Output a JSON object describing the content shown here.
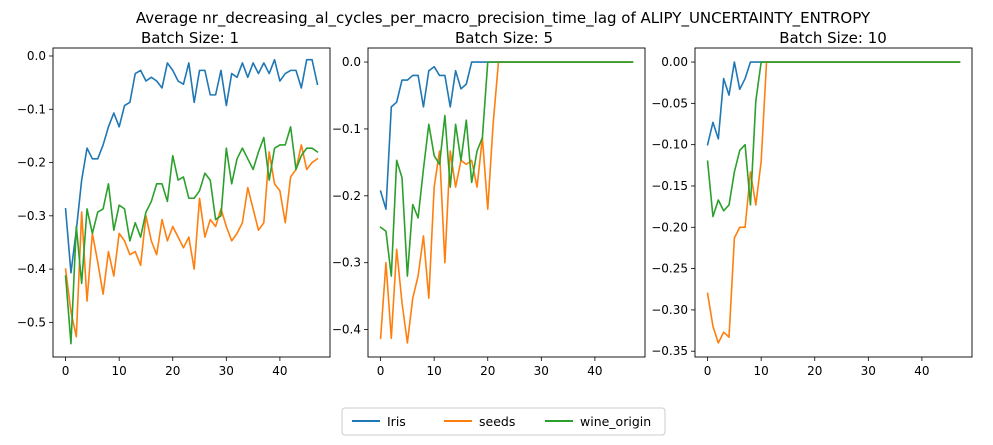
{
  "figure": {
    "suptitle": "Average nr_decreasing_al_cycles_per_macro_precision_time_lag of ALIPY_UNCERTAINTY_ENTROPY",
    "legend": [
      {
        "label": "Iris",
        "color": "#1f77b4"
      },
      {
        "label": "seeds",
        "color": "#ff7f0e"
      },
      {
        "label": "wine_origin",
        "color": "#2ca02c"
      }
    ],
    "legend_position": "bottom-center"
  },
  "chart_data": [
    {
      "type": "line",
      "title": "Batch Size: 1",
      "xlabel": "",
      "ylabel": "",
      "xlim": [
        -2.35,
        49.35
      ],
      "ylim": [
        -0.565,
        0.015
      ],
      "xticks": [
        0,
        10,
        20,
        30,
        40
      ],
      "xtick_labels": [
        "0",
        "10",
        "20",
        "30",
        "40"
      ],
      "yticks": [
        0.0,
        -0.1,
        -0.2,
        -0.3,
        -0.4,
        -0.5
      ],
      "ytick_labels": [
        "0.0",
        "−0.1",
        "−0.2",
        "−0.3",
        "−0.4",
        "−0.5"
      ],
      "grid": false,
      "x": [
        0,
        1,
        2,
        3,
        4,
        5,
        6,
        7,
        8,
        9,
        10,
        11,
        12,
        13,
        14,
        15,
        16,
        17,
        18,
        19,
        20,
        21,
        22,
        23,
        24,
        25,
        26,
        27,
        28,
        29,
        30,
        31,
        32,
        33,
        34,
        35,
        36,
        37,
        38,
        39,
        40,
        41,
        42,
        43,
        44,
        45,
        46,
        47
      ],
      "series": [
        {
          "name": "Iris",
          "color": "#1f77b4",
          "values": [
            -0.287,
            -0.407,
            -0.327,
            -0.233,
            -0.173,
            -0.193,
            -0.193,
            -0.167,
            -0.133,
            -0.107,
            -0.133,
            -0.093,
            -0.087,
            -0.033,
            -0.027,
            -0.047,
            -0.04,
            -0.047,
            -0.06,
            -0.013,
            -0.027,
            -0.047,
            -0.053,
            -0.013,
            -0.087,
            -0.027,
            -0.027,
            -0.073,
            -0.073,
            -0.027,
            -0.093,
            -0.033,
            -0.04,
            -0.013,
            -0.04,
            -0.013,
            -0.033,
            -0.013,
            -0.033,
            -0.007,
            -0.047,
            -0.033,
            -0.027,
            -0.027,
            -0.06,
            -0.007,
            -0.007,
            -0.053
          ]
        },
        {
          "name": "seeds",
          "color": "#ff7f0e",
          "values": [
            -0.4,
            -0.48,
            -0.527,
            -0.293,
            -0.46,
            -0.333,
            -0.387,
            -0.447,
            -0.367,
            -0.413,
            -0.333,
            -0.347,
            -0.373,
            -0.367,
            -0.393,
            -0.3,
            -0.347,
            -0.373,
            -0.307,
            -0.347,
            -0.32,
            -0.34,
            -0.36,
            -0.34,
            -0.4,
            -0.267,
            -0.34,
            -0.307,
            -0.32,
            -0.287,
            -0.32,
            -0.347,
            -0.333,
            -0.313,
            -0.247,
            -0.287,
            -0.327,
            -0.313,
            -0.18,
            -0.24,
            -0.253,
            -0.313,
            -0.227,
            -0.213,
            -0.167,
            -0.213,
            -0.2,
            -0.193
          ]
        },
        {
          "name": "wine_origin",
          "color": "#2ca02c",
          "values": [
            -0.413,
            -0.54,
            -0.32,
            -0.427,
            -0.287,
            -0.333,
            -0.293,
            -0.287,
            -0.24,
            -0.327,
            -0.28,
            -0.287,
            -0.347,
            -0.313,
            -0.34,
            -0.293,
            -0.273,
            -0.24,
            -0.24,
            -0.273,
            -0.187,
            -0.233,
            -0.227,
            -0.267,
            -0.267,
            -0.253,
            -0.22,
            -0.233,
            -0.307,
            -0.3,
            -0.173,
            -0.24,
            -0.193,
            -0.173,
            -0.193,
            -0.213,
            -0.18,
            -0.153,
            -0.233,
            -0.173,
            -0.167,
            -0.167,
            -0.133,
            -0.213,
            -0.187,
            -0.173,
            -0.173,
            -0.18
          ]
        }
      ]
    },
    {
      "type": "line",
      "title": "Batch Size: 5",
      "xlabel": "",
      "ylabel": "",
      "xlim": [
        -2.35,
        49.35
      ],
      "ylim": [
        -0.441,
        0.021
      ],
      "xticks": [
        0,
        10,
        20,
        30,
        40
      ],
      "xtick_labels": [
        "0",
        "10",
        "20",
        "30",
        "40"
      ],
      "yticks": [
        0.0,
        -0.1,
        -0.2,
        -0.3,
        -0.4
      ],
      "ytick_labels": [
        "0.0",
        "−0.1",
        "−0.2",
        "−0.3",
        "−0.4"
      ],
      "grid": false,
      "x": [
        0,
        1,
        2,
        3,
        4,
        5,
        6,
        7,
        8,
        9,
        10,
        11,
        12,
        13,
        14,
        15,
        16,
        17,
        18,
        19,
        20,
        21,
        22,
        23,
        24,
        25,
        26,
        27,
        28,
        29,
        30,
        31,
        32,
        33,
        34,
        35,
        36,
        37,
        38,
        39,
        40,
        41,
        42,
        43,
        44,
        45,
        46,
        47
      ],
      "series": [
        {
          "name": "Iris",
          "color": "#1f77b4",
          "values": [
            -0.193,
            -0.22,
            -0.067,
            -0.06,
            -0.027,
            -0.027,
            -0.02,
            -0.02,
            -0.067,
            -0.013,
            -0.007,
            -0.02,
            -0.02,
            -0.067,
            -0.013,
            -0.04,
            -0.033,
            0,
            0,
            0,
            0,
            0,
            0,
            0,
            0,
            0,
            0,
            0,
            0,
            0,
            0,
            0,
            0,
            0,
            0,
            0,
            0,
            0,
            0,
            0,
            0,
            0,
            0,
            0,
            0,
            0,
            0,
            0
          ]
        },
        {
          "name": "seeds",
          "color": "#ff7f0e",
          "values": [
            -0.413,
            -0.3,
            -0.413,
            -0.28,
            -0.36,
            -0.42,
            -0.353,
            -0.32,
            -0.26,
            -0.353,
            -0.187,
            -0.133,
            -0.3,
            -0.133,
            -0.187,
            -0.147,
            -0.153,
            -0.147,
            -0.187,
            -0.113,
            -0.22,
            -0.093,
            0,
            0,
            0,
            0,
            0,
            0,
            0,
            0,
            0,
            0,
            0,
            0,
            0,
            0,
            0,
            0,
            0,
            0,
            0,
            0,
            0,
            0,
            0,
            0,
            0,
            0
          ]
        },
        {
          "name": "wine_origin",
          "color": "#2ca02c",
          "values": [
            -0.247,
            -0.253,
            -0.32,
            -0.147,
            -0.173,
            -0.32,
            -0.213,
            -0.233,
            -0.16,
            -0.093,
            -0.14,
            -0.153,
            -0.08,
            -0.187,
            -0.093,
            -0.147,
            -0.087,
            -0.18,
            -0.133,
            -0.113,
            0,
            0,
            0,
            0,
            0,
            0,
            0,
            0,
            0,
            0,
            0,
            0,
            0,
            0,
            0,
            0,
            0,
            0,
            0,
            0,
            0,
            0,
            0,
            0,
            0,
            0,
            0,
            0
          ]
        }
      ]
    },
    {
      "type": "line",
      "title": "Batch Size: 10",
      "xlabel": "",
      "ylabel": "",
      "xlim": [
        -2.35,
        49.35
      ],
      "ylim": [
        -0.357,
        0.017
      ],
      "xticks": [
        0,
        10,
        20,
        30,
        40
      ],
      "xtick_labels": [
        "0",
        "10",
        "20",
        "30",
        "40"
      ],
      "yticks": [
        0.0,
        -0.05,
        -0.1,
        -0.15,
        -0.2,
        -0.25,
        -0.3,
        -0.35
      ],
      "ytick_labels": [
        "0.00",
        "−0.05",
        "−0.10",
        "−0.15",
        "−0.20",
        "−0.25",
        "−0.30",
        "−0.35"
      ],
      "grid": false,
      "x": [
        0,
        1,
        2,
        3,
        4,
        5,
        6,
        7,
        8,
        9,
        10,
        11,
        12,
        13,
        14,
        15,
        16,
        17,
        18,
        19,
        20,
        21,
        22,
        23,
        24,
        25,
        26,
        27,
        28,
        29,
        30,
        31,
        32,
        33,
        34,
        35,
        36,
        37,
        38,
        39,
        40,
        41,
        42,
        43,
        44,
        45,
        46,
        47
      ],
      "series": [
        {
          "name": "Iris",
          "color": "#1f77b4",
          "values": [
            -0.1,
            -0.073,
            -0.093,
            -0.02,
            -0.04,
            0,
            -0.033,
            -0.02,
            0,
            0,
            0,
            0,
            0,
            0,
            0,
            0,
            0,
            0,
            0,
            0,
            0,
            0,
            0,
            0,
            0,
            0,
            0,
            0,
            0,
            0,
            0,
            0,
            0,
            0,
            0,
            0,
            0,
            0,
            0,
            0,
            0,
            0,
            0,
            0,
            0,
            0,
            0,
            0
          ]
        },
        {
          "name": "seeds",
          "color": "#ff7f0e",
          "values": [
            -0.28,
            -0.32,
            -0.34,
            -0.327,
            -0.333,
            -0.213,
            -0.2,
            -0.2,
            -0.133,
            -0.173,
            -0.12,
            0,
            0,
            0,
            0,
            0,
            0,
            0,
            0,
            0,
            0,
            0,
            0,
            0,
            0,
            0,
            0,
            0,
            0,
            0,
            0,
            0,
            0,
            0,
            0,
            0,
            0,
            0,
            0,
            0,
            0,
            0,
            0,
            0,
            0,
            0,
            0,
            0
          ]
        },
        {
          "name": "wine_origin",
          "color": "#2ca02c",
          "values": [
            -0.12,
            -0.187,
            -0.167,
            -0.18,
            -0.173,
            -0.133,
            -0.107,
            -0.1,
            -0.173,
            -0.047,
            0,
            0,
            0,
            0,
            0,
            0,
            0,
            0,
            0,
            0,
            0,
            0,
            0,
            0,
            0,
            0,
            0,
            0,
            0,
            0,
            0,
            0,
            0,
            0,
            0,
            0,
            0,
            0,
            0,
            0,
            0,
            0,
            0,
            0,
            0,
            0,
            0,
            0
          ]
        }
      ]
    }
  ]
}
